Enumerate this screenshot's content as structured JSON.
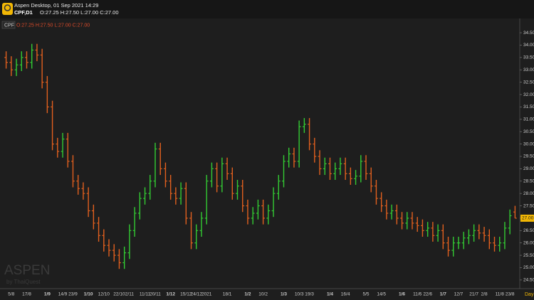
{
  "header": {
    "title": "Aspen Desktop, 01 Sep 2021 14:29",
    "symbol": "CPF,D1",
    "ohlc_text": "O:27.25 H:27.50 L:27.00 C:27.00"
  },
  "chart_data": {
    "type": "ohlc",
    "symbol_tag": "CPF",
    "ohlc_label": "O:27.25 H:27.50 L:27.00 C:27.00",
    "watermark": "ASPEN",
    "watermark_sub": "by ThaiQuest",
    "period_label": "Day",
    "up_color": "#33cc33",
    "down_color": "#e2601e",
    "categories": [
      null,
      "5/8",
      null,
      null,
      "17/8",
      null,
      null,
      null,
      "1/9",
      null,
      null,
      "14/9",
      null,
      "23/9",
      null,
      null,
      "1/10",
      null,
      null,
      "12/10",
      null,
      null,
      "22/10",
      null,
      "2/11",
      null,
      null,
      "11/11",
      null,
      "20/11",
      null,
      null,
      "1/12",
      null,
      null,
      "15/12",
      null,
      "24/12",
      null,
      "2021",
      null,
      null,
      null,
      "18/1",
      null,
      null,
      null,
      "1/2",
      null,
      null,
      "10/2",
      null,
      null,
      null,
      "1/3",
      null,
      null,
      "10/3",
      null,
      "19/3",
      null,
      null,
      null,
      "1/4",
      null,
      null,
      "16/4",
      null,
      null,
      null,
      "5/5",
      null,
      null,
      "14/5",
      null,
      null,
      null,
      "1/6",
      null,
      null,
      "11/6",
      null,
      "22/6",
      null,
      null,
      "1/7",
      null,
      null,
      "12/7",
      null,
      null,
      "21/7",
      null,
      "2/8",
      null,
      null,
      "11/8",
      null,
      "23/8",
      null
    ],
    "open": [
      33.5,
      33.3,
      33.0,
      33.2,
      33.5,
      33.3,
      33.8,
      33.6,
      32.5,
      31.5,
      30.0,
      29.7,
      30.2,
      29.3,
      28.5,
      28.2,
      28.0,
      27.3,
      26.8,
      26.3,
      25.9,
      25.7,
      25.5,
      25.2,
      25.6,
      26.5,
      27.2,
      27.8,
      28.0,
      28.5,
      29.8,
      29.0,
      28.5,
      28.0,
      27.8,
      28.2,
      27.0,
      26.0,
      26.5,
      27.0,
      28.5,
      29.0,
      28.3,
      29.2,
      28.8,
      28.0,
      28.3,
      27.5,
      27.0,
      27.2,
      27.5,
      27.0,
      27.3,
      28.0,
      28.5,
      29.3,
      29.6,
      29.3,
      30.7,
      30.8,
      30.0,
      29.5,
      29.0,
      29.2,
      28.8,
      29.0,
      29.2,
      28.8,
      28.6,
      28.7,
      29.3,
      28.8,
      28.3,
      27.8,
      27.5,
      27.2,
      27.3,
      27.0,
      26.8,
      27.0,
      26.8,
      26.7,
      26.5,
      26.6,
      26.3,
      26.5,
      26.0,
      25.7,
      26.0,
      26.0,
      26.2,
      26.3,
      26.5,
      26.4,
      26.3,
      26.0,
      25.9,
      26.0,
      26.6,
      27.25
    ],
    "high": [
      33.75,
      33.55,
      33.45,
      33.75,
      33.75,
      34.05,
      34.05,
      33.85,
      32.75,
      31.75,
      30.25,
      30.45,
      30.45,
      29.55,
      28.75,
      28.45,
      28.25,
      27.55,
      27.05,
      26.55,
      26.15,
      25.95,
      25.75,
      25.85,
      26.75,
      27.45,
      28.05,
      28.25,
      28.75,
      30.05,
      30.05,
      29.25,
      28.75,
      28.25,
      28.45,
      28.45,
      27.25,
      26.75,
      27.25,
      28.75,
      29.25,
      29.25,
      29.45,
      29.45,
      29.05,
      28.55,
      28.55,
      27.75,
      27.45,
      27.75,
      27.75,
      27.55,
      28.25,
      28.75,
      29.55,
      29.85,
      29.85,
      30.95,
      31.05,
      31.05,
      30.25,
      29.75,
      29.45,
      29.45,
      29.25,
      29.45,
      29.45,
      29.05,
      28.95,
      29.55,
      29.55,
      29.05,
      28.55,
      28.05,
      27.75,
      27.55,
      27.55,
      27.25,
      27.25,
      27.25,
      27.05,
      26.95,
      26.85,
      26.85,
      26.75,
      26.75,
      26.25,
      26.25,
      26.25,
      26.45,
      26.55,
      26.75,
      26.75,
      26.65,
      26.55,
      26.25,
      26.25,
      26.85,
      27.35,
      27.5
    ],
    "low": [
      33.05,
      32.75,
      32.75,
      32.95,
      33.05,
      33.05,
      33.35,
      32.25,
      31.25,
      29.75,
      29.45,
      29.45,
      29.05,
      28.25,
      27.95,
      27.75,
      27.05,
      26.55,
      26.05,
      25.65,
      25.45,
      25.25,
      24.95,
      24.95,
      25.35,
      26.25,
      26.95,
      27.55,
      27.75,
      28.25,
      28.75,
      28.25,
      27.75,
      27.55,
      27.55,
      26.75,
      25.75,
      25.75,
      26.25,
      26.75,
      28.25,
      28.05,
      28.05,
      28.55,
      27.75,
      27.75,
      27.25,
      26.75,
      26.75,
      26.95,
      26.75,
      26.75,
      27.05,
      27.75,
      28.25,
      29.05,
      29.05,
      29.05,
      30.45,
      29.75,
      29.25,
      28.75,
      28.75,
      28.55,
      28.55,
      28.75,
      28.55,
      28.35,
      28.35,
      28.45,
      28.55,
      28.05,
      27.55,
      27.25,
      26.95,
      26.95,
      26.75,
      26.55,
      26.55,
      26.55,
      26.45,
      26.25,
      26.25,
      26.05,
      26.05,
      25.75,
      25.45,
      25.45,
      25.75,
      25.75,
      25.95,
      26.05,
      26.15,
      26.05,
      25.75,
      25.65,
      25.65,
      25.75,
      26.35,
      27.0
    ],
    "close": [
      33.3,
      33.0,
      33.2,
      33.5,
      33.3,
      33.8,
      33.6,
      32.5,
      31.5,
      30.0,
      29.7,
      30.2,
      29.3,
      28.5,
      28.2,
      28.0,
      27.3,
      26.8,
      26.3,
      25.9,
      25.7,
      25.5,
      25.2,
      25.6,
      26.5,
      27.2,
      27.8,
      28.0,
      28.5,
      29.8,
      29.0,
      28.5,
      28.0,
      27.8,
      28.2,
      27.0,
      26.0,
      26.5,
      27.0,
      28.5,
      29.0,
      28.3,
      29.2,
      28.8,
      28.0,
      28.3,
      27.5,
      27.0,
      27.2,
      27.5,
      27.0,
      27.3,
      28.0,
      28.5,
      29.3,
      29.6,
      29.3,
      30.7,
      30.8,
      30.0,
      29.5,
      29.0,
      29.2,
      28.8,
      29.0,
      29.2,
      28.8,
      28.6,
      28.7,
      29.3,
      28.8,
      28.3,
      27.8,
      27.5,
      27.2,
      27.3,
      27.0,
      26.8,
      27.0,
      26.8,
      26.7,
      26.5,
      26.6,
      26.3,
      26.5,
      26.0,
      25.7,
      26.0,
      26.0,
      26.2,
      26.3,
      26.5,
      26.4,
      26.3,
      26.0,
      25.9,
      26.0,
      26.6,
      27.1,
      27.0
    ],
    "last": {
      "value": 27.0,
      "label": "27.00"
    },
    "ylim": [
      24.18,
      35.02
    ],
    "yticks": [
      {
        "value": 24.5,
        "label": "24.50"
      },
      {
        "value": 25,
        "label": "25.00"
      },
      {
        "value": 25.5,
        "label": "25.50"
      },
      {
        "value": 26,
        "label": "26.00"
      },
      {
        "value": 26.5,
        "label": "26.50"
      },
      {
        "value": 27,
        "label": "27.00"
      },
      {
        "value": 27.5,
        "label": "27.50"
      },
      {
        "value": 28,
        "label": "28.00"
      },
      {
        "value": 28.5,
        "label": "28.50"
      },
      {
        "value": 29,
        "label": "29.00"
      },
      {
        "value": 29.5,
        "label": "29.50"
      },
      {
        "value": 30,
        "label": "30.00"
      },
      {
        "value": 30.5,
        "label": "30.50"
      },
      {
        "value": 31,
        "label": "31.00"
      },
      {
        "value": 31.5,
        "label": "31.50"
      },
      {
        "value": 32,
        "label": "32.00"
      },
      {
        "value": 32.5,
        "label": "32.50"
      },
      {
        "value": 33,
        "label": "33.00"
      },
      {
        "value": 33.5,
        "label": "33.50"
      },
      {
        "value": 34,
        "label": "34.00"
      },
      {
        "value": 34.5,
        "label": "34.50"
      }
    ]
  }
}
